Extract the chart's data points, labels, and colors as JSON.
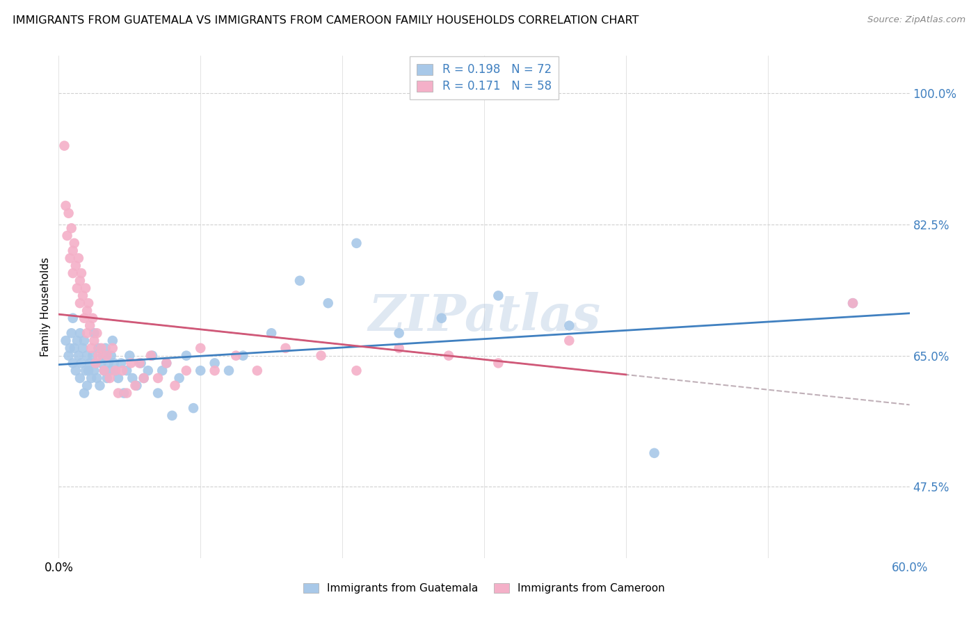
{
  "title": "IMMIGRANTS FROM GUATEMALA VS IMMIGRANTS FROM CAMEROON FAMILY HOUSEHOLDS CORRELATION CHART",
  "source": "Source: ZipAtlas.com",
  "ylabel": "Family Households",
  "xmin": 0.0,
  "xmax": 0.6,
  "ymin": 0.38,
  "ymax": 1.05,
  "guatemala_color": "#a8c8e8",
  "cameroon_color": "#f4b0c8",
  "trend_guatemala_color": "#4080c0",
  "trend_cameroon_color": "#d05878",
  "trend_dashed_color": "#c0b0b8",
  "watermark": "ZIPatlas",
  "legend_R_guatemala": "0.198",
  "legend_N_guatemala": "72",
  "legend_R_cameroon": "0.171",
  "legend_N_cameroon": "58",
  "guatemala_x": [
    0.005,
    0.007,
    0.008,
    0.009,
    0.01,
    0.01,
    0.011,
    0.012,
    0.013,
    0.014,
    0.015,
    0.015,
    0.016,
    0.017,
    0.018,
    0.018,
    0.019,
    0.02,
    0.02,
    0.021,
    0.022,
    0.023,
    0.024,
    0.025,
    0.025,
    0.026,
    0.027,
    0.028,
    0.029,
    0.03,
    0.031,
    0.032,
    0.033,
    0.034,
    0.035,
    0.036,
    0.037,
    0.038,
    0.039,
    0.04,
    0.042,
    0.044,
    0.046,
    0.048,
    0.05,
    0.052,
    0.055,
    0.058,
    0.06,
    0.063,
    0.066,
    0.07,
    0.073,
    0.076,
    0.08,
    0.085,
    0.09,
    0.095,
    0.1,
    0.11,
    0.12,
    0.13,
    0.15,
    0.17,
    0.19,
    0.21,
    0.24,
    0.27,
    0.31,
    0.36,
    0.42,
    0.56
  ],
  "guatemala_y": [
    0.67,
    0.65,
    0.66,
    0.68,
    0.64,
    0.7,
    0.66,
    0.63,
    0.67,
    0.65,
    0.62,
    0.68,
    0.64,
    0.66,
    0.6,
    0.67,
    0.63,
    0.61,
    0.65,
    0.63,
    0.64,
    0.62,
    0.65,
    0.63,
    0.68,
    0.64,
    0.62,
    0.66,
    0.61,
    0.64,
    0.65,
    0.63,
    0.66,
    0.62,
    0.64,
    0.63,
    0.65,
    0.67,
    0.64,
    0.63,
    0.62,
    0.64,
    0.6,
    0.63,
    0.65,
    0.62,
    0.61,
    0.64,
    0.62,
    0.63,
    0.65,
    0.6,
    0.63,
    0.64,
    0.57,
    0.62,
    0.65,
    0.58,
    0.63,
    0.64,
    0.63,
    0.65,
    0.68,
    0.75,
    0.72,
    0.8,
    0.68,
    0.7,
    0.73,
    0.69,
    0.52,
    0.72
  ],
  "cameroon_x": [
    0.004,
    0.005,
    0.006,
    0.007,
    0.008,
    0.009,
    0.01,
    0.01,
    0.011,
    0.012,
    0.013,
    0.014,
    0.015,
    0.015,
    0.016,
    0.017,
    0.018,
    0.019,
    0.02,
    0.02,
    0.021,
    0.022,
    0.023,
    0.024,
    0.025,
    0.026,
    0.027,
    0.028,
    0.03,
    0.032,
    0.034,
    0.036,
    0.038,
    0.04,
    0.042,
    0.045,
    0.048,
    0.051,
    0.054,
    0.057,
    0.06,
    0.065,
    0.07,
    0.076,
    0.082,
    0.09,
    0.1,
    0.11,
    0.125,
    0.14,
    0.16,
    0.185,
    0.21,
    0.24,
    0.275,
    0.31,
    0.36,
    0.56
  ],
  "cameroon_y": [
    0.93,
    0.85,
    0.81,
    0.84,
    0.78,
    0.82,
    0.79,
    0.76,
    0.8,
    0.77,
    0.74,
    0.78,
    0.75,
    0.72,
    0.76,
    0.73,
    0.7,
    0.74,
    0.71,
    0.68,
    0.72,
    0.69,
    0.66,
    0.7,
    0.67,
    0.64,
    0.68,
    0.65,
    0.66,
    0.63,
    0.65,
    0.62,
    0.66,
    0.63,
    0.6,
    0.63,
    0.6,
    0.64,
    0.61,
    0.64,
    0.62,
    0.65,
    0.62,
    0.64,
    0.61,
    0.63,
    0.66,
    0.63,
    0.65,
    0.63,
    0.66,
    0.65,
    0.63,
    0.66,
    0.65,
    0.64,
    0.67,
    0.72
  ],
  "ytick_positions": [
    0.475,
    0.65,
    0.825,
    1.0
  ],
  "ytick_labels": [
    "47.5%",
    "65.0%",
    "82.5%",
    "100.0%"
  ],
  "xtick_positions": [
    0.0,
    0.1,
    0.2,
    0.3,
    0.4,
    0.5,
    0.6
  ],
  "xtick_labels": [
    "0.0%",
    "",
    "",
    "",
    "",
    "",
    "60.0%"
  ]
}
